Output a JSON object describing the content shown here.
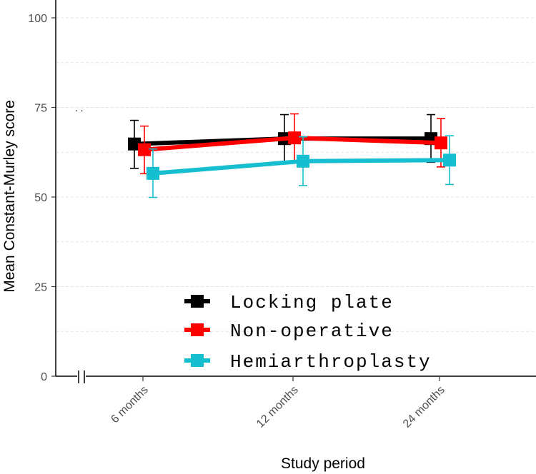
{
  "chart_data": {
    "type": "line",
    "title": "",
    "xlabel": "Study period",
    "ylabel": "Mean Constant-Murley score",
    "categories": [
      "6 months",
      "12 months",
      "24 months"
    ],
    "ylim": [
      0,
      100
    ],
    "yticks": [
      0,
      25,
      50,
      75,
      100
    ],
    "grid": true,
    "legend_position": "bottom-center",
    "series": [
      {
        "name": "Locking plate",
        "color": "#000000",
        "values": [
          64.8,
          66.3,
          66.3
        ],
        "err_low": [
          58.0,
          59.7,
          59.7
        ],
        "err_high": [
          71.4,
          73.0,
          73.0
        ]
      },
      {
        "name": "Non-operative",
        "color": "#ff0000",
        "values": [
          63.2,
          66.5,
          65.1
        ],
        "err_low": [
          56.5,
          59.9,
          58.4
        ],
        "err_high": [
          69.8,
          73.2,
          71.9
        ]
      },
      {
        "name": "Hemiarthroplasty",
        "color": "#17becf",
        "values": [
          56.6,
          60.0,
          60.3
        ],
        "err_low": [
          49.9,
          53.2,
          53.5
        ],
        "err_high": [
          63.4,
          66.8,
          67.1
        ]
      }
    ],
    "stray_mark": ". ."
  }
}
